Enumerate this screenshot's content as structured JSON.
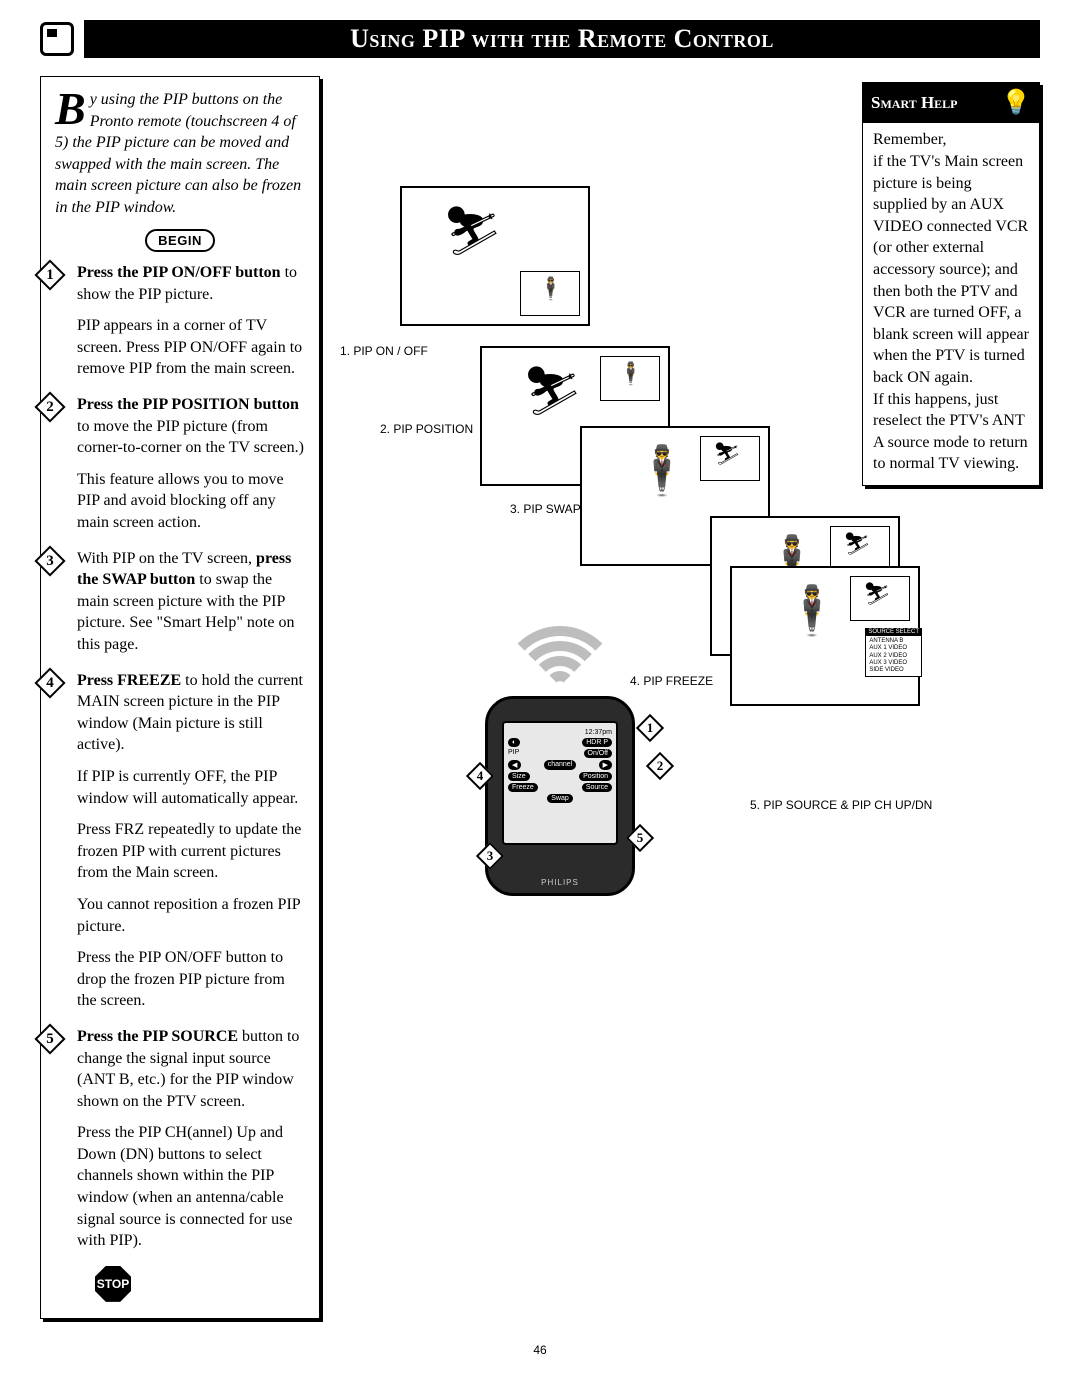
{
  "title": "Using PIP with the Remote Control",
  "intro_dropcap": "B",
  "intro_text": "y using the PIP buttons on the Pronto remote (touchscreen 4 of 5) the PIP picture can be moved and swapped with the main screen. The main screen picture can also be frozen in the PIP window.",
  "begin_label": "BEGIN",
  "stop_label": "STOP",
  "steps": [
    {
      "num": "1",
      "paras": [
        "<b>Press the PIP ON/OFF button</b> to show the PIP picture.",
        "PIP appears in a corner of TV screen.  Press PIP ON/OFF again to remove PIP from the main screen."
      ]
    },
    {
      "num": "2",
      "paras": [
        "<b>Press the PIP POSITION button</b>  to move the PIP picture (from corner-to-corner on the TV screen.)",
        "This feature allows you to move PIP and avoid blocking off any main screen action."
      ]
    },
    {
      "num": "3",
      "paras": [
        "With PIP on the TV screen, <b>press the SWAP button</b> to swap the main screen picture with the PIP picture. See \"Smart Help\" note on this page."
      ]
    },
    {
      "num": "4",
      "paras": [
        "<b>Press FREEZE</b> to hold the current MAIN screen picture in the PIP window (Main picture is still active).",
        "If PIP is currently OFF, the PIP window will automatically appear.",
        "Press FRZ repeatedly to update the frozen PIP with current pictures from the Main screen.",
        "You cannot reposition a frozen PIP picture.",
        "Press the PIP ON/OFF button to drop the frozen PIP picture from the screen."
      ]
    },
    {
      "num": "5",
      "paras": [
        "<b>Press the PIP SOURCE</b> button to change the signal input source (ANT B, etc.) for the PIP window shown on the PTV screen.",
        "Press the PIP CH(annel) Up and Down (DN) buttons to select channels shown within the PIP window (when an antenna/cable signal source is connected for use with PIP)."
      ]
    }
  ],
  "diagram_captions": {
    "c1": "1.  PIP ON / OFF",
    "c2": "2.  PIP POSITION",
    "c3": "3.  PIP SWAP",
    "c4": "4. PIP FREEZE",
    "c5": "5. PIP SOURCE & PIP CH UP/DN"
  },
  "remote": {
    "time": "12:37pm",
    "header_btn": "HDR P",
    "pip_label": "PIP",
    "onoff": "On/Off",
    "channel": "channel",
    "size": "Size",
    "position": "Position",
    "freeze": "Freeze",
    "source": "Source",
    "swap": "Swap",
    "brand": "PHILIPS"
  },
  "callouts": [
    "1",
    "2",
    "3",
    "4",
    "5"
  ],
  "source_menu": {
    "header": "SOURCE SELECT",
    "items": [
      "ANTENNA B",
      "AUX 1 VIDEO",
      "AUX 2 VIDEO",
      "AUX 3 VIDEO",
      "SIDE VIDEO"
    ]
  },
  "smart_help": {
    "title": "Smart Help",
    "body": "Remember,\nif the TV's Main screen picture is being supplied by an AUX VIDEO connected VCR (or other external accessory source); and then both the PTV and VCR are turned OFF, a blank screen will appear when the PTV is turned back ON again.\nIf this happens, just reselect the PTV's ANT A source mode to return to normal TV viewing."
  },
  "page_number": "46",
  "colors": {
    "black": "#000000",
    "white": "#ffffff",
    "wifi_gray": "#bdbdbd",
    "remote_body": "#2b2b2b",
    "remote_screen": "#e8e8e8"
  }
}
